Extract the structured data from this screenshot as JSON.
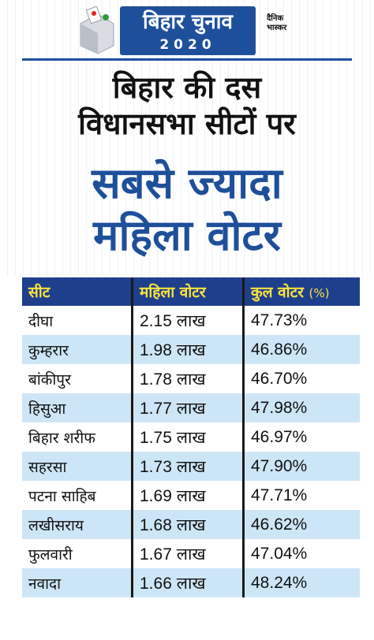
{
  "header": {
    "brand_title": "बिहार चुनाव",
    "year": "2020",
    "publisher_line1": "दैनिक",
    "publisher_line2": "भास्कर"
  },
  "headline": {
    "line1": "बिहार की दस",
    "line2": "विधानसभा सीटों पर",
    "line3": "सबसे ज्यादा",
    "line4": "महिला वोटर"
  },
  "table": {
    "columns": [
      "सीट",
      "महिला वोटर",
      "कुल वोटर",
      "(%)"
    ],
    "rows": [
      {
        "seat": "दीघा",
        "women": "2.15 लाख",
        "pct": "47.73%"
      },
      {
        "seat": "कुम्हरार",
        "women": "1.98 लाख",
        "pct": "46.86%"
      },
      {
        "seat": "बांकीपुर",
        "women": "1.78 लाख",
        "pct": "46.70%"
      },
      {
        "seat": "हिसुआ",
        "women": "1.77 लाख",
        "pct": "47.98%"
      },
      {
        "seat": "बिहार शरीफ",
        "women": "1.75 लाख",
        "pct": "46.97%"
      },
      {
        "seat": "सहरसा",
        "women": "1.73 लाख",
        "pct": "47.90%"
      },
      {
        "seat": "पटना साहिब",
        "women": "1.69 लाख",
        "pct": "47.71%"
      },
      {
        "seat": "लखीसराय",
        "women": "1.68 लाख",
        "pct": "46.62%"
      },
      {
        "seat": "फुलवारी",
        "women": "1.67 लाख",
        "pct": "47.04%"
      },
      {
        "seat": "नवादा",
        "women": "1.66 लाख",
        "pct": "48.24%"
      }
    ]
  },
  "colors": {
    "brand_blue": "#1e4f9a",
    "header_row": "#1e3f8c",
    "header_text": "#fde33b",
    "stripe_row": "#cde6f7"
  }
}
